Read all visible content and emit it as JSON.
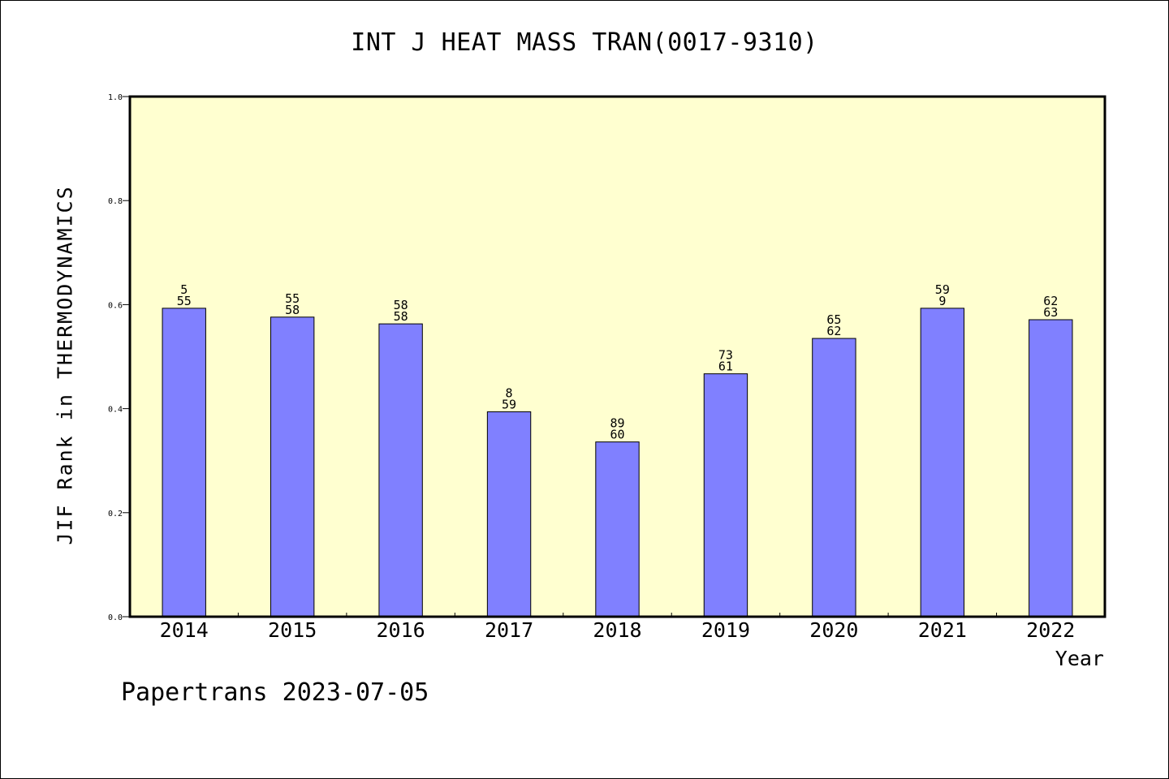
{
  "chart_data": {
    "type": "bar",
    "title": "INT J HEAT MASS TRAN(0017-9310)",
    "xlabel": "Year",
    "ylabel": "JIF Rank in THERMODYNAMICS",
    "categories": [
      "2014",
      "2015",
      "2016",
      "2017",
      "2018",
      "2019",
      "2020",
      "2021",
      "2022"
    ],
    "values": [
      0.593,
      0.576,
      0.563,
      0.394,
      0.336,
      0.467,
      0.535,
      0.593,
      0.571
    ],
    "bar_labels": [
      [
        "5",
        "55"
      ],
      [
        "55",
        "58"
      ],
      [
        "58",
        "58"
      ],
      [
        "8",
        "59"
      ],
      [
        "89",
        "60"
      ],
      [
        "73",
        "61"
      ],
      [
        "65",
        "62"
      ],
      [
        "59",
        "9"
      ],
      [
        "62",
        "63"
      ]
    ],
    "ylim": [
      0,
      1.0
    ],
    "yticks": [
      "0.0",
      "0.2",
      "0.4",
      "0.6",
      "0.8",
      "1.0"
    ],
    "grid": false,
    "colors": {
      "plot_background": "#ffffd0",
      "bar_fill": "#8080ff",
      "bar_stroke": "#000000"
    }
  },
  "footer": "Papertrans 2023-07-05"
}
